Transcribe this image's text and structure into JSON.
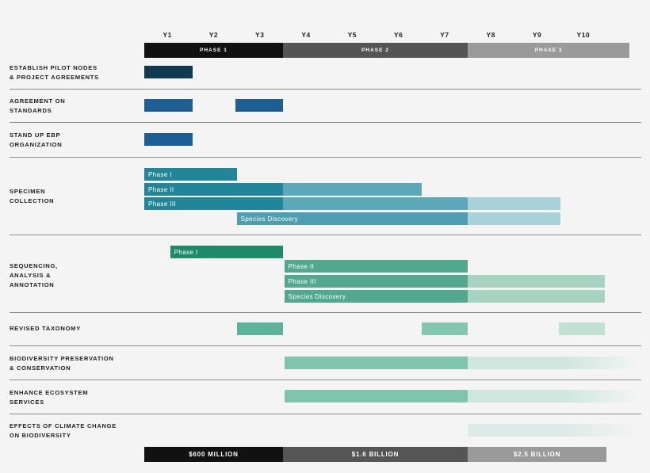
{
  "chart_data": {
    "type": "gantt",
    "years": [
      "Y1",
      "Y2",
      "Y3",
      "Y4",
      "Y5",
      "Y6",
      "Y7",
      "Y8",
      "Y9",
      "Y10"
    ],
    "phases": [
      {
        "label": "PHASE 1",
        "start": 0,
        "end": 3,
        "color": "#111111"
      },
      {
        "label": "PHASE 2",
        "start": 3,
        "end": 7,
        "color": "#555555"
      },
      {
        "label": "PHASE 3",
        "start": 7,
        "end": 10.5,
        "color": "#9a9a9a"
      }
    ],
    "rows": [
      {
        "label": "ESTABLISH PILOT NODES\n& PROJECT AGREEMENTS",
        "bars": [
          {
            "label": "",
            "segments": [
              {
                "start": 0,
                "end": 1.05,
                "color": "#0f3a52"
              }
            ]
          }
        ]
      },
      {
        "label": "AGREEMENT ON\nSTANDARDS",
        "bars": [
          {
            "label": "",
            "segments": [
              {
                "start": 0,
                "end": 1.05,
                "color": "#1d5f95"
              }
            ]
          },
          {
            "label": "",
            "segments": [
              {
                "start": 1.97,
                "end": 3.0,
                "color": "#1d5f95"
              }
            ]
          }
        ]
      },
      {
        "label": "STAND UP EBP\nORGANIZATION",
        "bars": [
          {
            "label": "",
            "segments": [
              {
                "start": 0,
                "end": 1.05,
                "color": "#1d5f95"
              }
            ]
          }
        ]
      },
      {
        "label": "SPECIMEN\nCOLLECTION",
        "bars": [
          {
            "label": "Phase I",
            "segments": [
              {
                "start": 0,
                "end": 2.0,
                "color": "#22869a"
              }
            ]
          },
          {
            "label": "Phase II",
            "segments": [
              {
                "start": 0,
                "end": 3.0,
                "color": "#22869a"
              },
              {
                "start": 3.0,
                "end": 6.0,
                "color": "#5aa8b8"
              }
            ]
          },
          {
            "label": "Phase III",
            "segments": [
              {
                "start": 0,
                "end": 3.0,
                "color": "#22869a"
              },
              {
                "start": 3.0,
                "end": 7.0,
                "color": "#5aa8b8"
              },
              {
                "start": 7.0,
                "end": 9.0,
                "color": "#a9d1d9"
              }
            ]
          },
          {
            "label": "Species Discovery",
            "segments": [
              {
                "start": 2.0,
                "end": 7.0,
                "color": "#4e9db0"
              },
              {
                "start": 7.0,
                "end": 9.0,
                "color": "#a9d1d9"
              }
            ]
          }
        ]
      },
      {
        "label": "SEQUENCING,\nANALYSIS &\nANNOTATION",
        "bars": [
          {
            "label": "Phase I",
            "segments": [
              {
                "start": 0.56,
                "end": 3.0,
                "color": "#1f8a6a"
              }
            ]
          },
          {
            "label": "Phase II",
            "segments": [
              {
                "start": 3.03,
                "end": 7.0,
                "color": "#52a88c"
              }
            ]
          },
          {
            "label": "Phase III",
            "segments": [
              {
                "start": 3.03,
                "end": 7.0,
                "color": "#52a88c"
              },
              {
                "start": 7.0,
                "end": 9.97,
                "color": "#a6d3c2"
              }
            ]
          },
          {
            "label": "Species Discovery",
            "segments": [
              {
                "start": 3.03,
                "end": 7.0,
                "color": "#52a88c"
              },
              {
                "start": 7.0,
                "end": 9.97,
                "color": "#a6d3c2"
              }
            ]
          }
        ]
      },
      {
        "label": "REVISED TAXONOMY",
        "bars": [
          {
            "label": "",
            "segments": [
              {
                "start": 2.0,
                "end": 3.0,
                "color": "#5cb39a"
              }
            ]
          },
          {
            "label": "",
            "segments": [
              {
                "start": 6.0,
                "end": 7.0,
                "color": "#84c7b1"
              }
            ]
          },
          {
            "label": "",
            "segments": [
              {
                "start": 8.97,
                "end": 9.97,
                "color": "#bfe2d5"
              }
            ]
          }
        ]
      },
      {
        "label": "BIODIVERSITY PRESERVATION\n& CONSERVATION",
        "bars": [
          {
            "label": "",
            "segments": [
              {
                "start": 3.03,
                "end": 7.0,
                "color": "#7fc4ad"
              },
              {
                "start": 7.0,
                "end": 10.8,
                "color": "#cde7de",
                "fade": true
              }
            ]
          }
        ]
      },
      {
        "label": "ENHANCE ECOSYSTEM\nSERVICES",
        "bars": [
          {
            "label": "",
            "segments": [
              {
                "start": 3.03,
                "end": 7.0,
                "color": "#7fc4ad"
              },
              {
                "start": 7.0,
                "end": 10.8,
                "color": "#cde7de",
                "fade": true
              }
            ]
          }
        ]
      },
      {
        "label": "EFFECTS OF CLIMATE CHANGE\nON BIODIVERSITY",
        "bars": [
          {
            "label": "",
            "segments": [
              {
                "start": 7.0,
                "end": 10.8,
                "color": "#dde9e6",
                "fade": true
              }
            ]
          }
        ]
      }
    ],
    "budget": [
      {
        "label": "$600 MILLION",
        "start": 0,
        "end": 3,
        "color": "#111111"
      },
      {
        "label": "$1.6 BILLION",
        "start": 3,
        "end": 7,
        "color": "#555555"
      },
      {
        "label": "$2.5 BILLION",
        "start": 7,
        "end": 10,
        "color": "#9a9a9a"
      }
    ]
  }
}
